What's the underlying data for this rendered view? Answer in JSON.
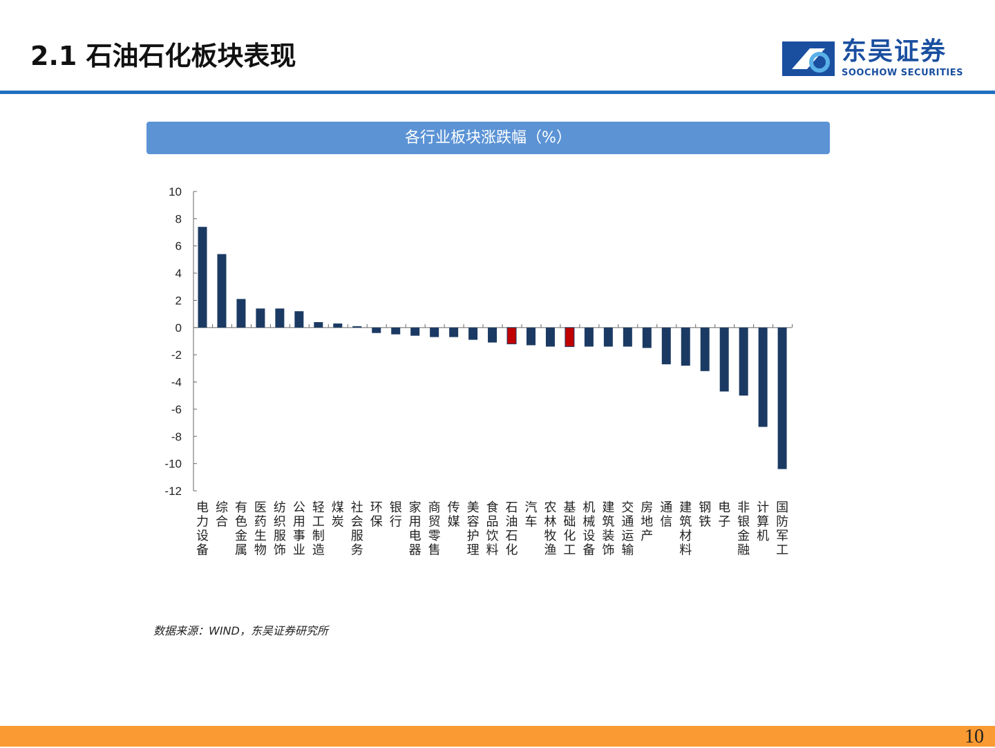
{
  "title": "2.1 石油石化板块表现",
  "logo": {
    "cn": "东吴证券",
    "en": "SOOCHOW SECURITIES"
  },
  "source": "数据来源：WIND，东吴证券研究所",
  "page_number": "10",
  "colors": {
    "bar": "#1b3a63",
    "highlight": "#c00000",
    "header": "#5b93d5",
    "rule": "#1f6fc0",
    "footer": "#f99a32"
  },
  "chart_data": {
    "type": "bar",
    "title": "各行业板块涨跌幅（%）",
    "ylim": [
      -12,
      10
    ],
    "yticks": [
      10,
      8,
      6,
      4,
      2,
      0,
      -2,
      -4,
      -6,
      -8,
      -10,
      -12
    ],
    "grid": false,
    "categories": [
      "电力设备",
      "综合",
      "有色金属",
      "医药生物",
      "纺织服饰",
      "公用事业",
      "轻工制造",
      "煤炭",
      "社会服务",
      "环保",
      "银行",
      "家用电器",
      "商贸零售",
      "传媒",
      "美容护理",
      "食品饮料",
      "石油石化",
      "汽车",
      "农林牧渔",
      "基础化工",
      "机械设备",
      "建筑装饰",
      "交通运输",
      "房地产",
      "通信",
      "建筑材料",
      "钢铁",
      "电子",
      "非银金融",
      "计算机",
      "国防军工"
    ],
    "values": [
      7.4,
      5.4,
      2.1,
      1.4,
      1.4,
      1.2,
      0.4,
      0.3,
      0.1,
      -0.4,
      -0.5,
      -0.6,
      -0.7,
      -0.7,
      -0.9,
      -1.1,
      -1.2,
      -1.3,
      -1.4,
      -1.4,
      -1.4,
      -1.4,
      -1.4,
      -1.5,
      -2.7,
      -2.8,
      -3.2,
      -4.7,
      -5.0,
      -7.3,
      -10.4
    ],
    "highlighted": [
      "石油石化",
      "基础化工"
    ]
  }
}
